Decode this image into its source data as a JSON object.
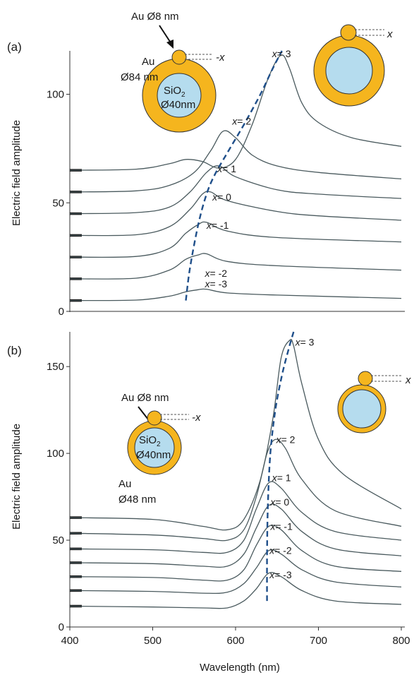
{
  "chart_data": [
    {
      "type": "line",
      "panel_label": "(a)",
      "ylabel": "Electric field amplitude",
      "xlabel": "",
      "xlim": [
        400,
        800
      ],
      "ylim": [
        0,
        120
      ],
      "yticks": [
        "0",
        "50",
        "100"
      ],
      "peak_trend": "dashed",
      "series": [
        {
          "name": "x= 3",
          "offset": 65,
          "x": [
            400,
            480,
            520,
            540,
            560,
            580,
            600,
            620,
            640,
            655,
            665,
            680,
            700,
            740,
            800
          ],
          "y": [
            65,
            65.5,
            68,
            70,
            69,
            66,
            70,
            86,
            108,
            118,
            112,
            96,
            87,
            80,
            76
          ]
        },
        {
          "name": "x= 2",
          "offset": 55,
          "x": [
            400,
            480,
            520,
            550,
            570,
            585,
            600,
            620,
            650,
            700,
            800
          ],
          "y": [
            55,
            55.5,
            58,
            64,
            74,
            83,
            80,
            72,
            67,
            64,
            61
          ]
        },
        {
          "name": "x= 1",
          "offset": 45,
          "x": [
            400,
            480,
            520,
            545,
            565,
            580,
            600,
            650,
            700,
            800
          ],
          "y": [
            45,
            45.5,
            48,
            55,
            64,
            67,
            62,
            56,
            54,
            52
          ]
        },
        {
          "name": "x= 0",
          "offset": 35,
          "x": [
            400,
            480,
            520,
            545,
            560,
            570,
            590,
            650,
            700,
            800
          ],
          "y": [
            35,
            35.3,
            39,
            47,
            54,
            55,
            51,
            46,
            44,
            42
          ]
        },
        {
          "name": "x= -1",
          "offset": 25,
          "x": [
            400,
            480,
            520,
            540,
            555,
            565,
            590,
            650,
            800
          ],
          "y": [
            25,
            25.3,
            29,
            36,
            40,
            41,
            37,
            34,
            32
          ]
        },
        {
          "name": "x= -2",
          "offset": 15,
          "x": [
            400,
            480,
            520,
            540,
            555,
            565,
            590,
            650,
            800
          ],
          "y": [
            15,
            15.3,
            19,
            24,
            26,
            26.5,
            23,
            21,
            19
          ]
        },
        {
          "name": "x= -3",
          "offset": 5,
          "x": [
            400,
            480,
            520,
            540,
            555,
            565,
            590,
            650,
            800
          ],
          "y": [
            5,
            5.2,
            7,
            9,
            10,
            10.2,
            8.5,
            7.5,
            6
          ]
        }
      ],
      "annotations": [
        {
          "text": "x= 3",
          "x": 644,
          "y": 117
        },
        {
          "text": "x= 2",
          "x": 596,
          "y": 86
        },
        {
          "text": "x= 1",
          "x": 578,
          "y": 64
        },
        {
          "text": "x= 0",
          "x": 572,
          "y": 51
        },
        {
          "text": "x= -1",
          "x": 565,
          "y": 38
        },
        {
          "text": "x= -2",
          "x": 563,
          "y": 16
        },
        {
          "text": "x= -3",
          "x": 563,
          "y": 11
        }
      ],
      "trend": {
        "x": [
          540,
          545,
          555,
          565,
          575,
          590,
          610,
          630,
          645,
          656
        ],
        "y": [
          5,
          20,
          40,
          54,
          63,
          73,
          86,
          100,
          112,
          120
        ]
      },
      "inset_left": {
        "label_np": "Au Ø8 nm",
        "label_shell_1": "Au",
        "label_shell_2": "Ø84 nm",
        "label_core_1": "SiO",
        "label_core_sub": "2",
        "label_core_2": "Ø40nm",
        "label_axis": "-x"
      },
      "inset_right": {
        "label_axis": "x"
      },
      "colors": {
        "curve": "#4a5a5e",
        "trend": "#1f4f8a",
        "shell": "#f5b51e",
        "core": "#b5dcee"
      }
    },
    {
      "type": "line",
      "panel_label": "(b)",
      "ylabel": "Electric field amplitude",
      "xlabel": "Wavelength (nm)",
      "xlim": [
        400,
        800
      ],
      "ylim": [
        0,
        170
      ],
      "xticks": [
        "400",
        "500",
        "600",
        "700",
        "800"
      ],
      "yticks": [
        "0",
        "50",
        "100",
        "150"
      ],
      "peak_trend": "dashed",
      "series": [
        {
          "name": "x= 3",
          "offset": 63,
          "x": [
            400,
            500,
            560,
            590,
            610,
            630,
            645,
            655,
            665,
            670,
            680,
            700,
            730,
            800
          ],
          "y": [
            63,
            62,
            58,
            56,
            62,
            85,
            120,
            155,
            165,
            162,
            140,
            108,
            88,
            68
          ]
        },
        {
          "name": "x= 2",
          "offset": 54,
          "x": [
            400,
            500,
            560,
            590,
            610,
            625,
            638,
            648,
            660,
            680,
            720,
            800
          ],
          "y": [
            54,
            53,
            51,
            50,
            56,
            75,
            100,
            108,
            103,
            85,
            67,
            58
          ]
        },
        {
          "name": "x= 1",
          "offset": 45,
          "x": [
            400,
            500,
            560,
            590,
            610,
            625,
            640,
            655,
            680,
            720,
            800
          ],
          "y": [
            45,
            44.5,
            43,
            43,
            50,
            68,
            83,
            80,
            66,
            55,
            50
          ]
        },
        {
          "name": "x= 0",
          "offset": 37,
          "x": [
            400,
            500,
            560,
            590,
            610,
            625,
            640,
            655,
            680,
            720,
            800
          ],
          "y": [
            37,
            36.5,
            35,
            35,
            42,
            57,
            70,
            68,
            55,
            45,
            41
          ]
        },
        {
          "name": "x= -1",
          "offset": 29,
          "x": [
            400,
            500,
            560,
            590,
            610,
            625,
            640,
            655,
            680,
            720,
            800
          ],
          "y": [
            29,
            28.5,
            27,
            27,
            33,
            47,
            58,
            56,
            44,
            35,
            32
          ]
        },
        {
          "name": "x= -2",
          "offset": 21,
          "x": [
            400,
            500,
            560,
            590,
            610,
            625,
            640,
            655,
            680,
            720,
            800
          ],
          "y": [
            21,
            20.5,
            19.5,
            20,
            25,
            34,
            44,
            42,
            33,
            26,
            23
          ]
        },
        {
          "name": "x= -3",
          "offset": 12,
          "x": [
            400,
            500,
            560,
            590,
            610,
            625,
            640,
            655,
            680,
            720,
            800
          ],
          "y": [
            12,
            11.5,
            11,
            11,
            15,
            22,
            31,
            29,
            21,
            15,
            13
          ]
        }
      ],
      "annotations": [
        {
          "text": "x= 3",
          "x": 672,
          "y": 162
        },
        {
          "text": "x= 2",
          "x": 649,
          "y": 106
        },
        {
          "text": "x= 1",
          "x": 644,
          "y": 84
        },
        {
          "text": "x= 0",
          "x": 642,
          "y": 70
        },
        {
          "text": "x= -1",
          "x": 642,
          "y": 56
        },
        {
          "text": "x= -2",
          "x": 641,
          "y": 42
        },
        {
          "text": "x= -3",
          "x": 641,
          "y": 28
        }
      ],
      "trend": {
        "x": [
          638,
          638,
          639,
          642,
          648,
          656,
          664,
          670
        ],
        "y": [
          15,
          40,
          70,
          100,
          125,
          145,
          160,
          170
        ]
      },
      "inset_left": {
        "label_np": "Au Ø8 nm",
        "label_shell_1": "Au",
        "label_shell_2": "Ø48 nm",
        "label_core_1": "SiO",
        "label_core_sub": "2",
        "label_core_2": "Ø40nm",
        "label_axis": "-x"
      },
      "inset_right": {
        "label_axis": "x"
      },
      "colors": {
        "curve": "#4a5a5e",
        "trend": "#1f4f8a",
        "shell": "#f5b51e",
        "core": "#b5dcee"
      }
    }
  ]
}
